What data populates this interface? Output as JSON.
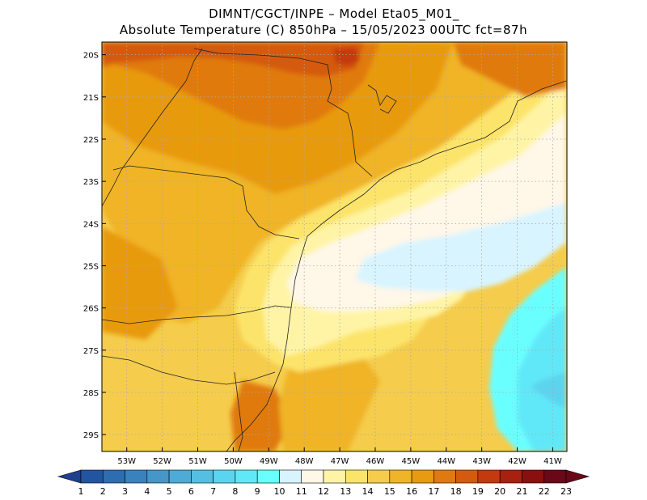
{
  "header": {
    "line1": "DIMNT/CGCT/INPE –  Model Eta05_M01_",
    "line2": "Absolute Temperature (C) 850hPa –  15/05/2023 00UTC fct=87h"
  },
  "map": {
    "lon_labels": [
      "53W",
      "52W",
      "51W",
      "50W",
      "49W",
      "48W",
      "47W",
      "46W",
      "45W",
      "44W",
      "43W",
      "42W",
      "41W"
    ],
    "lat_labels": [
      "20S",
      "21S",
      "22S",
      "23S",
      "24S",
      "25S",
      "26S",
      "27S",
      "28S",
      "29S"
    ],
    "lon_range": [
      -53.7,
      -40.6
    ],
    "lat_range": [
      -29.4,
      -19.7
    ],
    "grid": true
  },
  "colorbar": {
    "labels": [
      "1",
      "2",
      "3",
      "4",
      "5",
      "6",
      "7",
      "8",
      "9",
      "10",
      "11",
      "12",
      "13",
      "14",
      "15",
      "16",
      "17",
      "18",
      "19",
      "20",
      "21",
      "22",
      "23"
    ],
    "colors": [
      "#1f3f8f",
      "#2255a0",
      "#2e6db0",
      "#3a82bd",
      "#4696c8",
      "#4eaad6",
      "#55bfe3",
      "#5bd4ef",
      "#60e8f8",
      "#6affff",
      "#d8f4ff",
      "#fff7e8",
      "#fff4a6",
      "#fce46a",
      "#f5cc4c",
      "#f0b428",
      "#e89a10",
      "#e07a10",
      "#d45a10",
      "#c43a10",
      "#a82010",
      "#8a1010",
      "#6a0818"
    ]
  },
  "colors": {
    "frame": "#000000",
    "grid": "#aaaaaa",
    "coast": "#222222"
  }
}
